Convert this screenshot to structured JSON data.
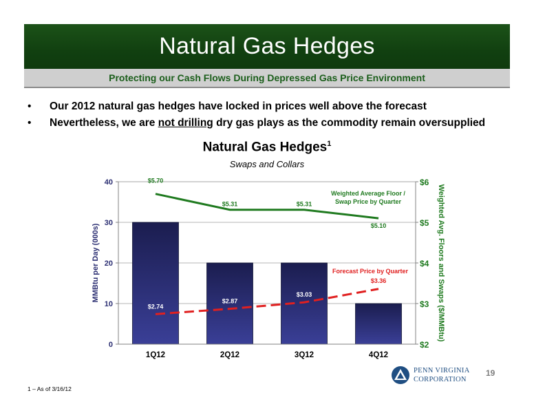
{
  "header": {
    "title": "Natural Gas Hedges",
    "subtitle": "Protecting our Cash Flows During Depressed Gas Price Environment"
  },
  "bullets": [
    {
      "text": "Our 2012 natural gas hedges have locked in prices well above the forecast"
    },
    {
      "before": "Nevertheless, we are ",
      "underlined": "not drilling",
      "after": " dry gas plays as the commodity remain oversupplied"
    }
  ],
  "bullet_marker": "•",
  "chart_data": {
    "type": "bar",
    "title": "Natural Gas Hedges",
    "title_superscript": "1",
    "subtitle": "Swaps and Collars",
    "categories": [
      "1Q12",
      "2Q12",
      "3Q12",
      "4Q12"
    ],
    "series": [
      {
        "kind": "bar",
        "axis": "left",
        "values": [
          30,
          20,
          20,
          10
        ],
        "color": "#2b2e72"
      },
      {
        "kind": "line",
        "axis": "right",
        "name": "Weighted Average Floor / Swap Price by Quarter",
        "name_lines": [
          "Weighted Average Floor /",
          "Swap Price by Quarter"
        ],
        "values": [
          5.7,
          5.31,
          5.31,
          5.1
        ],
        "labels": [
          "$5.70",
          "$5.31",
          "$5.31",
          "$5.10"
        ],
        "color": "#1f7a1f"
      },
      {
        "kind": "line",
        "axis": "right",
        "name": "Forecast Price by Quarter",
        "values": [
          2.74,
          2.87,
          3.03,
          3.36
        ],
        "labels": [
          "$2.74",
          "$2.87",
          "$3.03",
          "$3.36"
        ],
        "color": "#e02020",
        "dashed": true
      }
    ],
    "ylabel": "MMBtu per Day (000s)",
    "ylim": [
      0,
      40
    ],
    "yticks": [
      0,
      10,
      20,
      30,
      40
    ],
    "ytick_labels": [
      "0",
      "10",
      "20",
      "30",
      "40"
    ],
    "y2label": "Weighted Avg. Floors and Swaps ($/MMBtu)",
    "y2lim": [
      2,
      6
    ],
    "y2ticks": [
      2,
      3,
      4,
      5,
      6
    ],
    "y2tick_labels": [
      "$2",
      "$3",
      "$4",
      "$5",
      "$6"
    ],
    "grid": true
  },
  "footnote": "1 – As of 3/16/12",
  "page_number": "19",
  "logo": {
    "line1": "PENN VIRGINIA",
    "line2": "CORPORATION",
    "icon": "triangle-in-circle-icon",
    "color": "#1f4e82"
  }
}
